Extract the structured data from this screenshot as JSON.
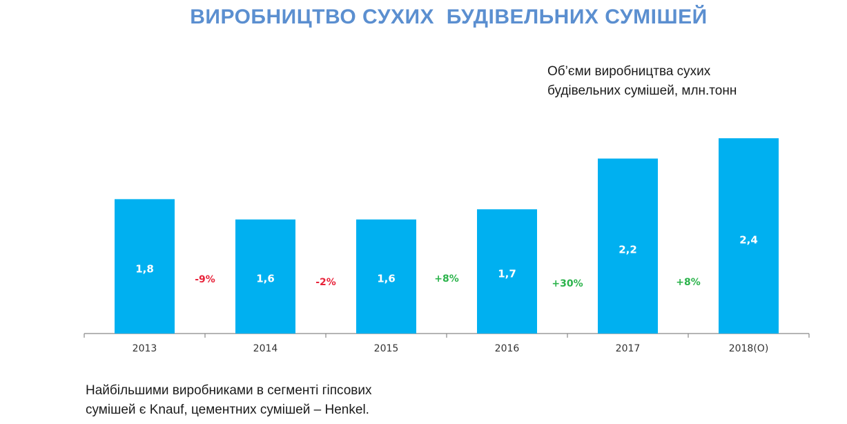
{
  "title": "ВИРОБНИЦТВО СУХИХ  БУДІВЕЛЬНИХ СУМІШЕЙ",
  "subtitle": [
    "Об’єми виробництва сухих",
    "будівельних сумішей, млн.тонн"
  ],
  "footnote": [
    "Найбільшими виробниками в сегменті гіпсових",
    "сумішей є Knauf, цементних сумішей – Henkel."
  ],
  "colors": {
    "bar": "#00b0f0",
    "title": "#5b8fd0",
    "negative": "#e8233a",
    "positive": "#2bb34b"
  },
  "chart_data": {
    "type": "bar",
    "categories": [
      "2013",
      "2014",
      "2015",
      "2016",
      "2017",
      "2018(O)"
    ],
    "values": [
      1.8,
      1.6,
      1.6,
      1.7,
      2.2,
      2.4
    ],
    "value_labels": [
      "1,8",
      "1,6",
      "1,6",
      "1,7",
      "2,2",
      "2,4"
    ],
    "changes": [
      "-9%",
      "-2%",
      "+8%",
      "+30%",
      "+8%"
    ],
    "xlabel": "",
    "ylabel": "",
    "grid": false
  }
}
